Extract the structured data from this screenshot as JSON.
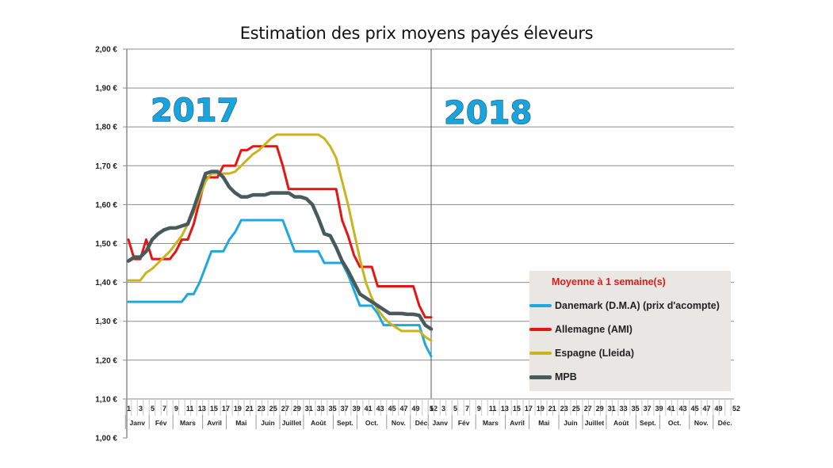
{
  "chart_data": {
    "type": "line",
    "title": "Estimation des prix moyens payés éleveurs",
    "xlabel": "",
    "ylabel": "",
    "ylim": [
      1.0,
      2.0
    ],
    "ytick_labels": [
      "1,00 €",
      "1,10 €",
      "1,20 €",
      "1,30 €",
      "1,40 €",
      "1,50 €",
      "1,60 €",
      "1,70 €",
      "1,80 €",
      "1,90 €",
      "2,00 €"
    ],
    "yticks": [
      1.0,
      1.1,
      1.2,
      1.3,
      1.4,
      1.5,
      1.6,
      1.7,
      1.8,
      1.9,
      2.0
    ],
    "grid": true,
    "year_labels": [
      "2017",
      "2018"
    ],
    "x_week_labels_2017": [
      "1",
      "3",
      "5",
      "7",
      "9",
      "11",
      "13",
      "15",
      "17",
      "19",
      "21",
      "23",
      "25",
      "27",
      "29",
      "31",
      "33",
      "35",
      "37",
      "39",
      "41",
      "43",
      "45",
      "47",
      "49",
      "52"
    ],
    "x_week_labels_2018": [
      "1",
      "3",
      "5",
      "7",
      "9",
      "11",
      "13",
      "15",
      "17",
      "19",
      "21",
      "23",
      "25",
      "27",
      "29",
      "31",
      "33",
      "35",
      "37",
      "39",
      "41",
      "43",
      "45",
      "47",
      "49",
      "52"
    ],
    "months": [
      "Janv",
      "Fév",
      "Mars",
      "Avril",
      "Mai",
      "Juin",
      "Juillet",
      "Août",
      "Sept.",
      "Oct.",
      "Nov.",
      "Déc."
    ],
    "legend": {
      "title": "Moyenne à  1 semaine(s)",
      "position": "bottom-right"
    },
    "x": [
      1,
      2,
      3,
      4,
      5,
      6,
      7,
      8,
      9,
      10,
      11,
      12,
      13,
      14,
      15,
      16,
      17,
      18,
      19,
      20,
      21,
      22,
      23,
      24,
      25,
      26,
      27,
      28,
      29,
      30,
      31,
      32,
      33,
      34,
      35,
      36,
      37,
      38,
      39,
      40,
      41,
      42,
      43,
      44,
      45,
      46,
      47,
      48,
      49,
      50,
      51,
      52
    ],
    "series": [
      {
        "name": "Danemark (D.M.A) (prix d'acompte)",
        "color": "#1fa8e0",
        "values": [
          1.35,
          1.35,
          1.35,
          1.35,
          1.35,
          1.35,
          1.35,
          1.35,
          1.35,
          1.35,
          1.37,
          1.37,
          1.4,
          1.44,
          1.48,
          1.48,
          1.48,
          1.51,
          1.53,
          1.56,
          1.56,
          1.56,
          1.56,
          1.56,
          1.56,
          1.56,
          1.56,
          1.52,
          1.48,
          1.48,
          1.48,
          1.48,
          1.48,
          1.45,
          1.45,
          1.45,
          1.45,
          1.42,
          1.38,
          1.34,
          1.34,
          1.34,
          1.32,
          1.29,
          1.29,
          1.29,
          1.29,
          1.29,
          1.29,
          1.29,
          1.24,
          1.21
        ]
      },
      {
        "name": "Allemagne (AMI)",
        "color": "#e61414",
        "values": [
          1.51,
          1.46,
          1.46,
          1.51,
          1.46,
          1.46,
          1.46,
          1.46,
          1.48,
          1.51,
          1.51,
          1.55,
          1.61,
          1.67,
          1.67,
          1.67,
          1.7,
          1.7,
          1.7,
          1.74,
          1.74,
          1.75,
          1.75,
          1.75,
          1.75,
          1.75,
          1.7,
          1.64,
          1.64,
          1.64,
          1.64,
          1.64,
          1.64,
          1.64,
          1.64,
          1.64,
          1.56,
          1.52,
          1.47,
          1.44,
          1.44,
          1.44,
          1.39,
          1.39,
          1.39,
          1.39,
          1.39,
          1.39,
          1.39,
          1.34,
          1.31,
          1.31
        ]
      },
      {
        "name": "Espagne (Lleida)",
        "color": "#c9b41b",
        "values": [
          1.405,
          1.405,
          1.405,
          1.425,
          1.435,
          1.45,
          1.465,
          1.48,
          1.5,
          1.52,
          1.55,
          1.58,
          1.62,
          1.66,
          1.68,
          1.68,
          1.68,
          1.68,
          1.685,
          1.7,
          1.715,
          1.73,
          1.74,
          1.755,
          1.77,
          1.78,
          1.78,
          1.78,
          1.78,
          1.78,
          1.78,
          1.78,
          1.78,
          1.77,
          1.75,
          1.72,
          1.66,
          1.6,
          1.53,
          1.46,
          1.4,
          1.36,
          1.33,
          1.31,
          1.295,
          1.285,
          1.275,
          1.275,
          1.275,
          1.275,
          1.26,
          1.25
        ]
      },
      {
        "name": "MPB",
        "color": "#485a5c",
        "values": [
          1.455,
          1.465,
          1.465,
          1.48,
          1.51,
          1.525,
          1.535,
          1.54,
          1.54,
          1.545,
          1.55,
          1.59,
          1.635,
          1.68,
          1.685,
          1.685,
          1.67,
          1.645,
          1.63,
          1.62,
          1.62,
          1.625,
          1.625,
          1.625,
          1.63,
          1.63,
          1.63,
          1.63,
          1.62,
          1.62,
          1.615,
          1.6,
          1.565,
          1.525,
          1.52,
          1.49,
          1.455,
          1.43,
          1.4,
          1.37,
          1.36,
          1.35,
          1.34,
          1.33,
          1.32,
          1.32,
          1.32,
          1.318,
          1.318,
          1.315,
          1.29,
          1.28
        ]
      }
    ]
  }
}
